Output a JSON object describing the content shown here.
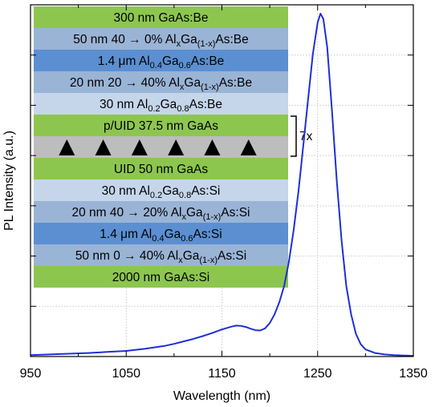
{
  "chart_data": {
    "type": "line",
    "xlabel": "Wavelength (nm)",
    "ylabel": "PL Intensity (a.u.)",
    "xlim": [
      950,
      1350
    ],
    "ylim": [
      0,
      1.0
    ],
    "x_ticks": [
      950,
      1050,
      1150,
      1250,
      1350
    ],
    "x_tick_labels": [
      "950",
      "1050",
      "1150",
      "1250",
      "1350"
    ],
    "y_tick_labels": [],
    "grid": true,
    "line_color": "#1f2fd6",
    "series": [
      {
        "x": [
          950,
          970,
          990,
          1010,
          1030,
          1050,
          1070,
          1090,
          1100,
          1110,
          1120,
          1130,
          1140,
          1150,
          1160,
          1165,
          1170,
          1175,
          1180,
          1185,
          1190,
          1195,
          1200,
          1205,
          1210,
          1215,
          1220,
          1225,
          1230,
          1235,
          1240,
          1245,
          1250,
          1253,
          1256,
          1260,
          1265,
          1270,
          1275,
          1280,
          1285,
          1290,
          1295,
          1300,
          1310,
          1320,
          1330,
          1340,
          1350
        ],
        "y": [
          0.004,
          0.006,
          0.008,
          0.01,
          0.013,
          0.016,
          0.022,
          0.03,
          0.036,
          0.043,
          0.05,
          0.058,
          0.067,
          0.077,
          0.085,
          0.088,
          0.087,
          0.084,
          0.079,
          0.075,
          0.074,
          0.08,
          0.095,
          0.12,
          0.155,
          0.2,
          0.27,
          0.36,
          0.47,
          0.6,
          0.73,
          0.86,
          0.95,
          0.975,
          0.96,
          0.88,
          0.7,
          0.5,
          0.33,
          0.2,
          0.12,
          0.065,
          0.035,
          0.02,
          0.01,
          0.006,
          0.004,
          0.003,
          0.002
        ]
      }
    ],
    "inset_layers": [
      {
        "text": "300 nm GaAs:Be",
        "color": "#8dc64f"
      },
      {
        "text": "50 nm 40 → 0% Al_xGa_(1-x)As:Be",
        "color": "#9ab4d6"
      },
      {
        "text": "1.4 μm Al_0.4Ga_0.6As:Be",
        "color": "#5b8fd2"
      },
      {
        "text": "20 nm 20 → 40% Al_xGa_(1-x)As:Be",
        "color": "#9ab4d6"
      },
      {
        "text": "30 nm Al_0.2Ga_0.8As:Be",
        "color": "#c5d6ea"
      },
      {
        "text": "p/UID 37.5 nm GaAs",
        "color": "#8dc64f"
      },
      {
        "text": "",
        "color": "#bdbdbd",
        "dots": true
      },
      {
        "text": "UID 50 nm GaAs",
        "color": "#8dc64f"
      },
      {
        "text": "30 nm Al_0.2Ga_0.8As:Si",
        "color": "#c5d6ea"
      },
      {
        "text": "20 nm 40 → 20% Al_xGa_(1-x)As:Si",
        "color": "#9ab4d6"
      },
      {
        "text": "1.4 μm Al_0.4Ga_0.6As:Si",
        "color": "#5b8fd2"
      },
      {
        "text": "50 nm 0 → 40% Al_xGa_(1-x)As:Si",
        "color": "#9ab4d6"
      },
      {
        "text": "2000 nm GaAs:Si",
        "color": "#8dc64f"
      }
    ],
    "repeat_label": "7x"
  }
}
